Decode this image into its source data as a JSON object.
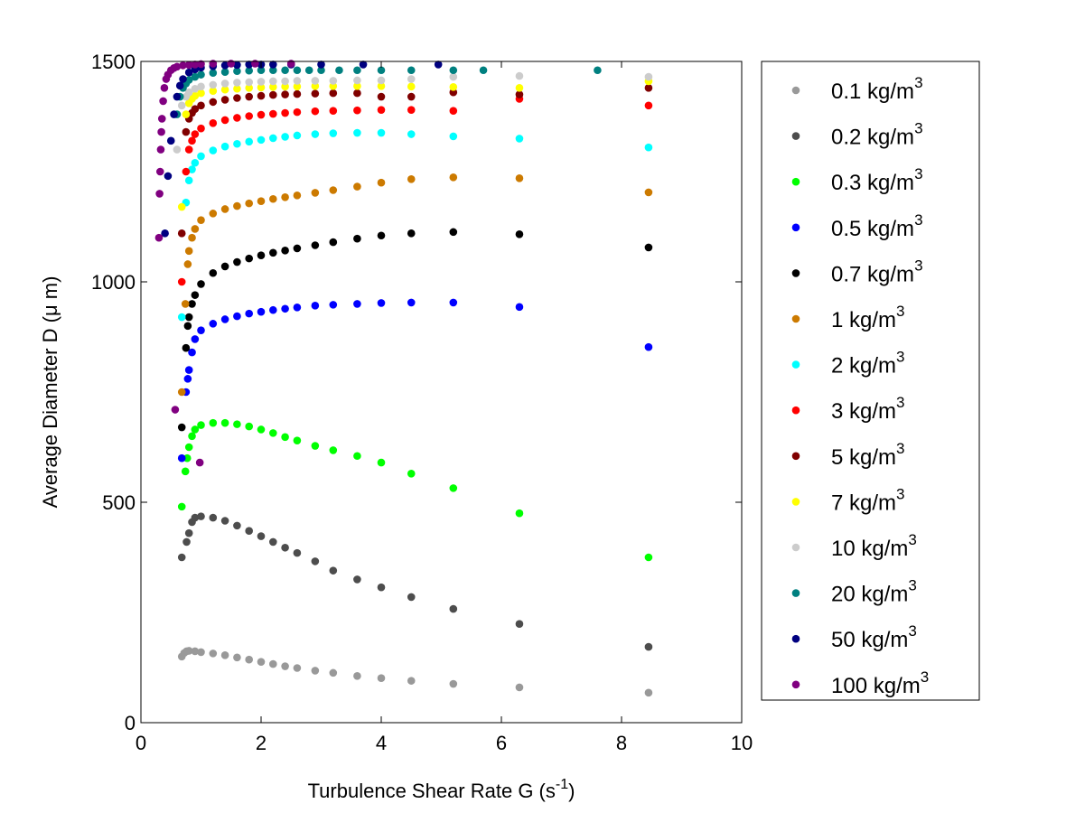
{
  "chart_data": {
    "type": "scatter",
    "title": "",
    "xlabel": "Turbulence Shear Rate G (s",
    "xlabel_sup": "-1",
    "xlabel_suffix": ")",
    "ylabel": "Average Diameter D (μ m)",
    "xlim": [
      0,
      10
    ],
    "ylim": [
      0,
      1500
    ],
    "x_ticks": [
      "0",
      "2",
      "4",
      "6",
      "8",
      "10"
    ],
    "y_ticks": [
      "0",
      "500",
      "1000",
      "1500"
    ],
    "grid": false,
    "legend_position": "right, outside plot",
    "unit_label": "kg/m",
    "unit_sup": "3",
    "series": [
      {
        "name": "0.1",
        "color": "#999999",
        "x": [
          0.68,
          0.72,
          0.76,
          0.8,
          0.9,
          1.0,
          1.2,
          1.4,
          1.6,
          1.8,
          2.0,
          2.2,
          2.4,
          2.6,
          2.9,
          3.2,
          3.6,
          4.0,
          4.5,
          5.2,
          6.3,
          8.45
        ],
        "y": [
          150,
          158,
          162,
          163,
          162,
          160,
          157,
          153,
          148,
          143,
          138,
          133,
          128,
          124,
          118,
          113,
          106,
          101,
          95,
          88,
          80,
          68
        ]
      },
      {
        "name": "0.2",
        "color": "#4d4d4d",
        "x": [
          0.68,
          0.76,
          0.8,
          0.85,
          0.9,
          1.0,
          1.2,
          1.4,
          1.6,
          1.8,
          2.0,
          2.2,
          2.4,
          2.6,
          2.9,
          3.2,
          3.6,
          4.0,
          4.5,
          5.2,
          6.3,
          8.45
        ],
        "y": [
          375,
          410,
          430,
          455,
          465,
          468,
          465,
          458,
          447,
          435,
          423,
          410,
          397,
          385,
          366,
          345,
          325,
          307,
          285,
          258,
          224,
          172
        ]
      },
      {
        "name": "0.3",
        "color": "#00ff00",
        "x": [
          0.68,
          0.74,
          0.77,
          0.8,
          0.85,
          0.9,
          1.0,
          1.2,
          1.4,
          1.6,
          1.8,
          2.0,
          2.2,
          2.4,
          2.6,
          2.9,
          3.2,
          3.6,
          4.0,
          4.5,
          5.2,
          6.3,
          8.45
        ],
        "y": [
          490,
          570,
          600,
          625,
          650,
          665,
          675,
          680,
          680,
          677,
          672,
          665,
          657,
          648,
          640,
          628,
          618,
          605,
          590,
          565,
          532,
          475,
          375
        ]
      },
      {
        "name": "0.5",
        "color": "#0000ff",
        "x": [
          0.68,
          0.75,
          0.78,
          0.8,
          0.85,
          0.9,
          1.0,
          1.2,
          1.4,
          1.6,
          1.8,
          2.0,
          2.2,
          2.4,
          2.6,
          2.9,
          3.2,
          3.6,
          4.0,
          4.5,
          5.2,
          6.3,
          8.45
        ],
        "y": [
          600,
          750,
          780,
          800,
          840,
          870,
          890,
          905,
          915,
          922,
          928,
          932,
          936,
          939,
          942,
          946,
          948,
          950,
          952,
          953,
          953,
          943,
          852
        ]
      },
      {
        "name": "0.7",
        "color": "#000000",
        "x": [
          0.68,
          0.75,
          0.78,
          0.8,
          0.85,
          0.9,
          1.0,
          1.2,
          1.4,
          1.6,
          1.8,
          2.0,
          2.2,
          2.4,
          2.6,
          2.9,
          3.2,
          3.6,
          4.0,
          4.5,
          5.2,
          6.3,
          8.45
        ],
        "y": [
          670,
          850,
          900,
          920,
          950,
          970,
          995,
          1020,
          1035,
          1045,
          1053,
          1060,
          1066,
          1071,
          1076,
          1083,
          1090,
          1098,
          1105,
          1110,
          1113,
          1108,
          1078
        ]
      },
      {
        "name": "1",
        "color": "#cc7a00",
        "x": [
          0.68,
          0.74,
          0.78,
          0.8,
          0.85,
          0.9,
          1.0,
          1.2,
          1.4,
          1.6,
          1.8,
          2.0,
          2.2,
          2.4,
          2.6,
          2.9,
          3.2,
          3.6,
          4.0,
          4.5,
          5.2,
          6.3,
          8.45
        ],
        "y": [
          750,
          950,
          1040,
          1070,
          1100,
          1120,
          1140,
          1155,
          1165,
          1172,
          1178,
          1183,
          1188,
          1192,
          1196,
          1202,
          1208,
          1216,
          1225,
          1233,
          1237,
          1235,
          1203
        ]
      },
      {
        "name": "2",
        "color": "#00ffff",
        "x": [
          0.68,
          0.75,
          0.8,
          0.85,
          0.9,
          1.0,
          1.2,
          1.4,
          1.6,
          1.8,
          2.0,
          2.2,
          2.4,
          2.6,
          2.9,
          3.2,
          3.6,
          4.0,
          4.5,
          5.2,
          6.3,
          8.45
        ],
        "y": [
          920,
          1180,
          1230,
          1255,
          1270,
          1285,
          1298,
          1307,
          1313,
          1318,
          1322,
          1326,
          1329,
          1332,
          1335,
          1337,
          1338,
          1338,
          1335,
          1330,
          1325,
          1305
        ]
      },
      {
        "name": "3",
        "color": "#ff0000",
        "x": [
          0.68,
          0.75,
          0.8,
          0.85,
          0.9,
          1.0,
          1.2,
          1.4,
          1.6,
          1.8,
          2.0,
          2.2,
          2.4,
          2.6,
          2.9,
          3.2,
          3.6,
          4.0,
          4.5,
          5.2,
          6.3,
          8.45
        ],
        "y": [
          1000,
          1250,
          1300,
          1320,
          1335,
          1348,
          1360,
          1367,
          1372,
          1376,
          1379,
          1381,
          1383,
          1385,
          1387,
          1388,
          1389,
          1390,
          1390,
          1388,
          1415,
          1400
        ]
      },
      {
        "name": "5",
        "color": "#800000",
        "x": [
          0.68,
          0.75,
          0.8,
          0.85,
          0.9,
          1.0,
          1.2,
          1.4,
          1.6,
          1.8,
          2.0,
          2.2,
          2.4,
          2.6,
          2.9,
          3.2,
          3.6,
          4.0,
          4.5,
          5.2,
          6.3,
          8.45
        ],
        "y": [
          1110,
          1340,
          1370,
          1383,
          1392,
          1400,
          1408,
          1413,
          1417,
          1420,
          1422,
          1424,
          1425,
          1426,
          1427,
          1428,
          1428,
          1420,
          1420,
          1430,
          1425,
          1440
        ]
      },
      {
        "name": "7",
        "color": "#ffff00",
        "x": [
          0.68,
          0.75,
          0.8,
          0.85,
          0.9,
          1.0,
          1.2,
          1.4,
          1.6,
          1.8,
          2.0,
          2.2,
          2.4,
          2.6,
          2.9,
          3.2,
          3.6,
          4.0,
          4.5,
          5.2,
          6.3,
          8.45
        ],
        "y": [
          1170,
          1380,
          1405,
          1415,
          1422,
          1428,
          1433,
          1436,
          1438,
          1440,
          1441,
          1442,
          1443,
          1443,
          1444,
          1444,
          1444,
          1444,
          1443,
          1442,
          1440,
          1455
        ]
      },
      {
        "name": "10",
        "color": "#cccccc",
        "x": [
          0.6,
          0.68,
          0.75,
          0.8,
          0.9,
          1.0,
          1.2,
          1.4,
          1.6,
          1.8,
          2.0,
          2.2,
          2.4,
          2.6,
          2.9,
          3.2,
          3.6,
          4.0,
          4.5,
          5.2,
          6.3,
          8.45
        ],
        "y": [
          1300,
          1400,
          1420,
          1430,
          1438,
          1443,
          1447,
          1450,
          1452,
          1453,
          1454,
          1455,
          1455,
          1456,
          1456,
          1456,
          1457,
          1457,
          1460,
          1465,
          1467,
          1465
        ]
      },
      {
        "name": "20",
        "color": "#008080",
        "x": [
          0.6,
          0.65,
          0.7,
          0.75,
          0.8,
          0.9,
          1.0,
          1.2,
          1.4,
          1.6,
          1.8,
          2.0,
          2.2,
          2.4,
          2.6,
          2.8,
          3.0,
          3.3,
          3.6,
          4.0,
          4.5,
          5.2,
          5.7,
          7.6
        ],
        "y": [
          1380,
          1420,
          1440,
          1450,
          1458,
          1465,
          1470,
          1474,
          1476,
          1478,
          1479,
          1480,
          1480,
          1480,
          1480,
          1480,
          1480,
          1480,
          1480,
          1480,
          1480,
          1480,
          1480,
          1480
        ]
      },
      {
        "name": "50",
        "color": "#000080",
        "x": [
          0.4,
          0.45,
          0.5,
          0.55,
          0.6,
          0.65,
          0.7,
          0.8,
          0.9,
          1.0,
          1.2,
          1.4,
          1.6,
          1.8,
          2.0,
          2.2,
          2.5,
          3.0,
          3.7,
          4.95
        ],
        "y": [
          1110,
          1240,
          1320,
          1380,
          1420,
          1445,
          1460,
          1475,
          1482,
          1486,
          1489,
          1491,
          1492,
          1493,
          1493,
          1493,
          1493,
          1493,
          1493,
          1493
        ]
      },
      {
        "name": "100",
        "color": "#800080",
        "x": [
          0.3,
          0.31,
          0.32,
          0.33,
          0.34,
          0.35,
          0.37,
          0.39,
          0.42,
          0.45,
          0.5,
          0.55,
          0.6,
          0.7,
          0.8,
          0.9,
          1.0,
          1.2,
          1.5,
          1.9,
          2.5,
          0.57,
          0.98
        ],
        "y": [
          1100,
          1200,
          1250,
          1300,
          1340,
          1370,
          1410,
          1440,
          1460,
          1470,
          1480,
          1485,
          1488,
          1491,
          1492,
          1493,
          1494,
          1495,
          1495,
          1495,
          1495,
          710,
          590
        ]
      }
    ]
  }
}
